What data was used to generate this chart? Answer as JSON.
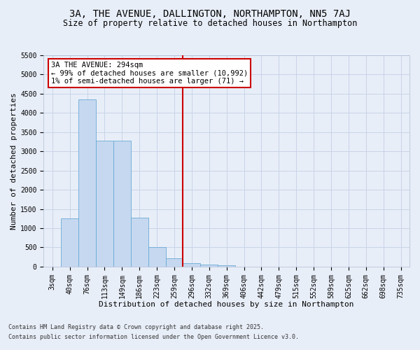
{
  "title": "3A, THE AVENUE, DALLINGTON, NORTHAMPTON, NN5 7AJ",
  "subtitle": "Size of property relative to detached houses in Northampton",
  "xlabel": "Distribution of detached houses by size in Northampton",
  "ylabel": "Number of detached properties",
  "categories": [
    "3sqm",
    "40sqm",
    "76sqm",
    "113sqm",
    "149sqm",
    "186sqm",
    "223sqm",
    "259sqm",
    "296sqm",
    "332sqm",
    "369sqm",
    "406sqm",
    "442sqm",
    "479sqm",
    "515sqm",
    "552sqm",
    "589sqm",
    "625sqm",
    "662sqm",
    "698sqm",
    "735sqm"
  ],
  "values": [
    0,
    1260,
    4350,
    3280,
    3280,
    1280,
    500,
    210,
    80,
    50,
    40,
    5,
    0,
    0,
    0,
    0,
    0,
    0,
    0,
    0,
    0
  ],
  "bar_color": "#c5d8f0",
  "bar_edge_color": "#6aaad4",
  "grid_color": "#c8d4e8",
  "bg_color": "#e8eef8",
  "ylim": [
    0,
    5500
  ],
  "yticks": [
    0,
    500,
    1000,
    1500,
    2000,
    2500,
    3000,
    3500,
    4000,
    4500,
    5000,
    5500
  ],
  "vline_x_index": 8,
  "vline_color": "#cc0000",
  "annotation_text": "3A THE AVENUE: 294sqm\n← 99% of detached houses are smaller (10,992)\n1% of semi-detached houses are larger (71) →",
  "annotation_box_facecolor": "#ffffff",
  "annotation_box_edgecolor": "#cc0000",
  "footer_line1": "Contains HM Land Registry data © Crown copyright and database right 2025.",
  "footer_line2": "Contains public sector information licensed under the Open Government Licence v3.0.",
  "title_fontsize": 10,
  "subtitle_fontsize": 8.5,
  "tick_fontsize": 7,
  "xlabel_fontsize": 8,
  "ylabel_fontsize": 8,
  "annotation_fontsize": 7.5,
  "footer_fontsize": 6
}
